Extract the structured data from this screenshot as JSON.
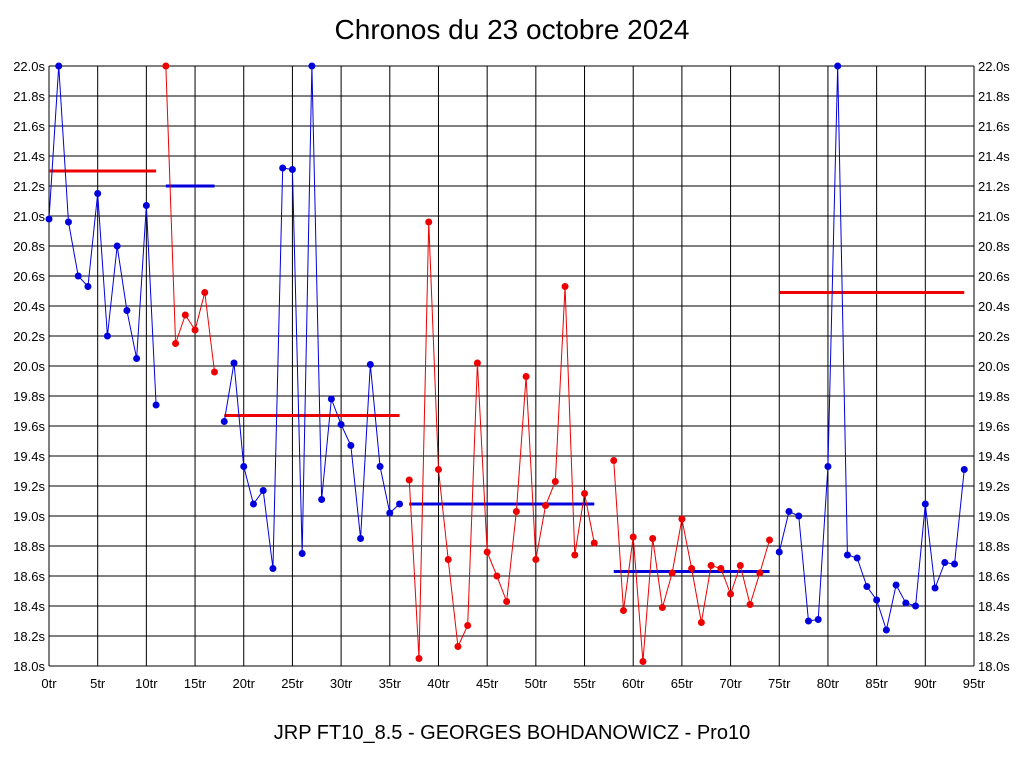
{
  "chart_data": {
    "type": "line",
    "title": "Chronos du 23 octobre 2024",
    "caption": "JRP FT10_8.5 - GEORGES BOHDANOWICZ - Pro10",
    "ylim": [
      18.0,
      22.0
    ],
    "xlim": [
      0,
      95
    ],
    "y_ticks": [
      "18.0s",
      "18.2s",
      "18.4s",
      "18.6s",
      "18.8s",
      "19.0s",
      "19.2s",
      "19.4s",
      "19.6s",
      "19.8s",
      "20.0s",
      "20.2s",
      "20.4s",
      "20.6s",
      "20.8s",
      "21.0s",
      "21.2s",
      "21.4s",
      "21.6s",
      "21.8s",
      "22.0s"
    ],
    "x_ticks": [
      "0tr",
      "5tr",
      "10tr",
      "15tr",
      "20tr",
      "25tr",
      "30tr",
      "35tr",
      "40tr",
      "45tr",
      "50tr",
      "55tr",
      "60tr",
      "65tr",
      "70tr",
      "75tr",
      "80tr",
      "85tr",
      "90tr",
      "95tr"
    ],
    "grid": true,
    "colors": {
      "blue": "#0000dd",
      "red": "#ee0000",
      "grid": "#000000"
    },
    "series": [
      {
        "color": "blue",
        "x": [
          0,
          1,
          2,
          3,
          4,
          5,
          6,
          7,
          8,
          9,
          10,
          11
        ],
        "values": [
          20.98,
          22.0,
          20.96,
          20.6,
          20.53,
          21.15,
          20.2,
          20.8,
          20.37,
          20.05,
          21.07,
          19.74
        ]
      },
      {
        "color": "red",
        "x": [
          12,
          13,
          14,
          15,
          16,
          17
        ],
        "values": [
          22.0,
          20.15,
          20.34,
          20.24,
          20.49,
          19.96
        ]
      },
      {
        "color": "blue",
        "x": [
          18,
          19,
          20,
          21,
          22,
          23,
          24,
          25,
          26,
          27,
          28,
          29,
          30,
          31,
          32,
          33,
          34,
          35,
          36
        ],
        "values": [
          19.63,
          20.02,
          19.33,
          19.08,
          19.17,
          18.65,
          21.32,
          21.31,
          18.75,
          22.0,
          19.11,
          19.78,
          19.61,
          19.47,
          18.85,
          20.01,
          19.33,
          19.02,
          19.08
        ]
      },
      {
        "color": "red",
        "x": [
          37,
          38,
          39,
          40,
          41,
          42,
          43,
          44,
          45,
          46,
          47,
          48,
          49,
          50,
          51,
          52,
          53,
          54,
          55,
          56
        ],
        "values": [
          19.24,
          18.05,
          20.96,
          19.31,
          18.71,
          18.13,
          18.27,
          20.02,
          18.76,
          18.6,
          18.43,
          19.03,
          19.93,
          18.71,
          19.07,
          19.23,
          20.53,
          18.74,
          19.15,
          18.82
        ]
      },
      {
        "color": "red",
        "x": [
          58,
          59,
          60,
          61,
          62,
          63,
          64,
          65,
          66,
          67,
          68,
          69,
          70,
          71,
          72,
          73,
          74
        ],
        "values": [
          19.37,
          18.37,
          18.86,
          18.03,
          18.85,
          18.39,
          18.62,
          18.98,
          18.65,
          18.29,
          18.67,
          18.65,
          18.48,
          18.67,
          18.41,
          18.62,
          18.84
        ]
      },
      {
        "color": "blue",
        "x": [
          75,
          76,
          77,
          78,
          79,
          80,
          81,
          82,
          83,
          84,
          85,
          86,
          87,
          88,
          89,
          90,
          91,
          92,
          93,
          94
        ],
        "values": [
          18.76,
          19.03,
          19.0,
          18.3,
          18.31,
          19.33,
          22.0,
          18.74,
          18.72,
          18.53,
          18.44,
          18.24,
          18.54,
          18.42,
          18.4,
          19.08,
          18.52,
          18.69,
          18.68,
          19.31
        ]
      }
    ],
    "averages": [
      {
        "color": "red",
        "x": [
          0,
          11
        ],
        "value": 21.3
      },
      {
        "color": "blue",
        "x": [
          12,
          17
        ],
        "value": 21.2
      },
      {
        "color": "red",
        "x": [
          18,
          36
        ],
        "value": 19.67
      },
      {
        "color": "blue",
        "x": [
          37,
          56
        ],
        "value": 19.08
      },
      {
        "color": "blue",
        "x": [
          58,
          74
        ],
        "value": 18.63
      },
      {
        "color": "red",
        "x": [
          75,
          94
        ],
        "value": 20.49
      }
    ]
  }
}
